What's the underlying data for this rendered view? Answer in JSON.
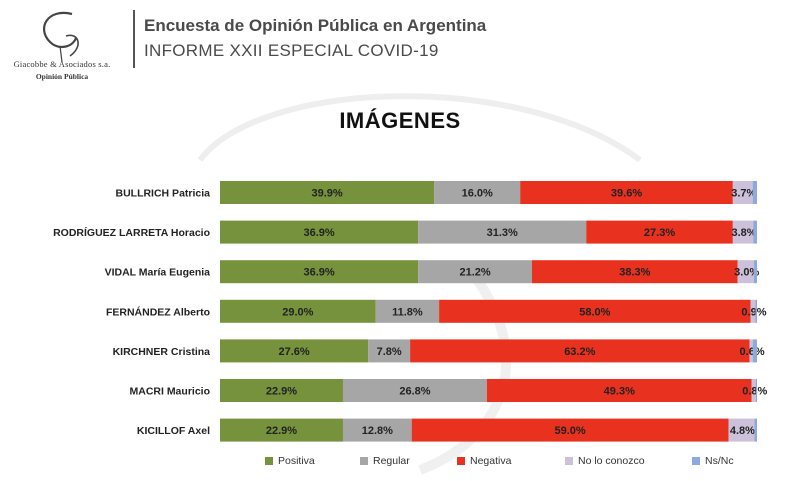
{
  "header": {
    "title": "Encuesta de Opinión Pública en Argentina",
    "subtitle": "INFORME XXII ESPECIAL COVID-19",
    "logo_firm": "Giacobbe & Asociados s.a.",
    "logo_sub": "Opinión Pública"
  },
  "colors": {
    "positiva": "#76923c",
    "regular": "#a6a6a6",
    "negativa": "#e8321f",
    "no_conozco": "#ccc0da",
    "nsnc": "#8ea9db"
  },
  "chart_data": {
    "type": "bar",
    "orientation": "horizontal",
    "stacked": true,
    "title": "IMÁGENES",
    "xlim": [
      0,
      100
    ],
    "categories": [
      "BULLRICH Patricia",
      "RODRÍGUEZ LARRETA Horacio",
      "VIDAL María Eugenia",
      "FERNÁNDEZ Alberto",
      "KIRCHNER Cristina",
      "MACRI Mauricio",
      "KICILLOF Axel"
    ],
    "series": [
      {
        "name": "Positiva",
        "values": [
          39.9,
          36.9,
          36.9,
          29.0,
          27.6,
          22.9,
          22.9
        ]
      },
      {
        "name": "Regular",
        "values": [
          16.0,
          31.3,
          21.2,
          11.8,
          7.8,
          26.8,
          12.8
        ]
      },
      {
        "name": "Negativa",
        "values": [
          39.6,
          27.3,
          38.3,
          58.0,
          63.2,
          49.3,
          59.0
        ]
      },
      {
        "name": "No lo conozco",
        "values": [
          3.7,
          3.8,
          3.0,
          0.9,
          0.6,
          0.8,
          4.8
        ]
      },
      {
        "name": "Ns/Nc",
        "values": [
          0.8,
          0.7,
          0.6,
          0.3,
          0.8,
          0.2,
          0.5
        ]
      }
    ],
    "labels": [
      [
        "39.9%",
        "16.0%",
        "39.6%",
        "3.7%",
        ""
      ],
      [
        "36.9%",
        "31.3%",
        "27.3%",
        "3.8%",
        ""
      ],
      [
        "36.9%",
        "21.2%",
        "38.3%",
        "3.0%",
        ""
      ],
      [
        "29.0%",
        "11.8%",
        "58.0%",
        "0.9%",
        ""
      ],
      [
        "27.6%",
        "7.8%",
        "63.2%",
        "0.6%",
        ""
      ],
      [
        "22.9%",
        "26.8%",
        "49.3%",
        "0.8%",
        ""
      ],
      [
        "22.9%",
        "12.8%",
        "59.0%",
        "4.8%",
        ""
      ]
    ],
    "legend": [
      "Positiva",
      "Regular",
      "Negativa",
      "No lo conozco",
      "Ns/Nc"
    ],
    "legend_position": "bottom"
  }
}
